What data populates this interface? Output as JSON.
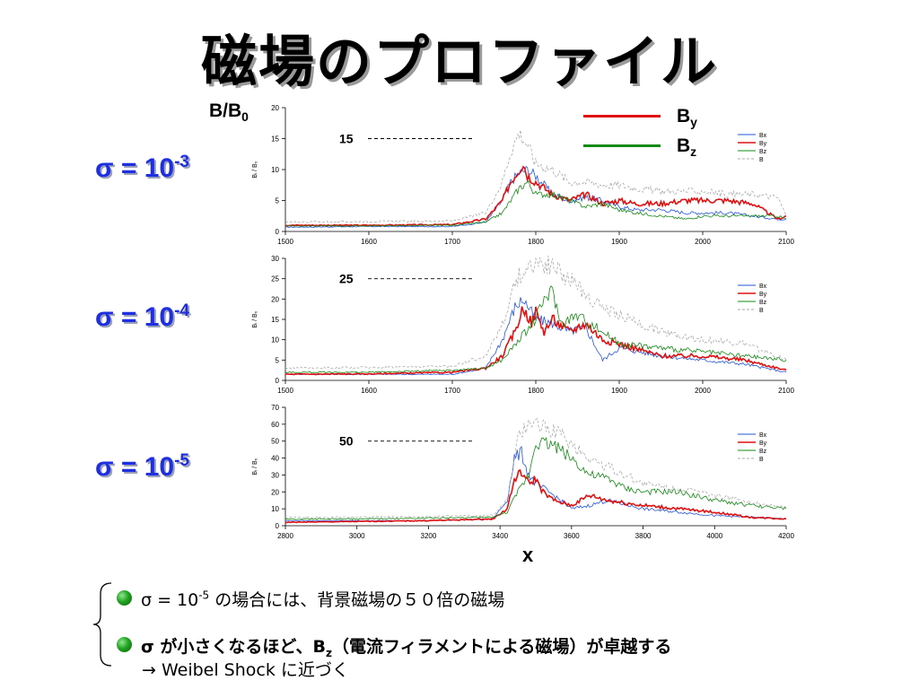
{
  "title": "磁場のプロファイル",
  "y_axis_label": {
    "main": "B/B",
    "sub": "0"
  },
  "x_axis_label": "x",
  "big_legend": [
    {
      "label": "B",
      "sub": "y",
      "color": "#e01010"
    },
    {
      "label": "B",
      "sub": "z",
      "color": "#138a13"
    }
  ],
  "panels": [
    {
      "sigma_text": "σ = 10",
      "sigma_exp": "-3",
      "marker_label": "15",
      "ylabel": "B_i / B_0"
    },
    {
      "sigma_text": "σ = 10",
      "sigma_exp": "-4",
      "marker_label": "25",
      "ylabel": "B_i / B_0"
    },
    {
      "sigma_text": "σ = 10",
      "sigma_exp": "-5",
      "marker_label": "50",
      "ylabel": "B_i / B_0"
    }
  ],
  "bullets": [
    {
      "pre": "σ = 10",
      "exp": "-5",
      "post": " の場合には、背景磁場の５０倍の磁場"
    },
    {
      "pre": "σ が小さくなるほど、B",
      "sub": "z",
      "post": "（電流フィラメントによる磁場）が卓越する",
      "line2": "→ Weibel Shock に近づく"
    }
  ],
  "chart_data": [
    {
      "type": "line",
      "ylabel": "B_i / B_0",
      "xlim": [
        1500,
        2100
      ],
      "ylim": [
        0,
        20
      ],
      "xticks": [
        1500,
        1600,
        1700,
        1800,
        1900,
        2000,
        2100
      ],
      "yticks": [
        0,
        5,
        10,
        15,
        20
      ],
      "legend": "top-right",
      "reference_line": 15,
      "series": [
        {
          "name": "Bx",
          "color": "#2255dd",
          "dash": false,
          "x": [
            1500,
            1600,
            1700,
            1740,
            1760,
            1770,
            1780,
            1790,
            1800,
            1820,
            1840,
            1860,
            1880,
            1900,
            1920,
            1950,
            1980,
            2000,
            2030,
            2060,
            2090,
            2100
          ],
          "y": [
            0.7,
            0.8,
            0.8,
            1.5,
            5,
            8,
            9.5,
            10,
            9,
            6,
            5,
            5.5,
            5,
            4,
            3.5,
            3.5,
            3,
            3,
            3,
            2.5,
            2,
            2
          ]
        },
        {
          "name": "By",
          "color": "#e01010",
          "dash": false,
          "x": [
            1500,
            1600,
            1700,
            1740,
            1760,
            1770,
            1780,
            1785,
            1790,
            1800,
            1820,
            1840,
            1860,
            1880,
            1900,
            1920,
            1950,
            1980,
            2000,
            2030,
            2060,
            2090,
            2100
          ],
          "y": [
            1,
            1,
            1.1,
            2,
            5,
            8,
            10,
            11,
            9,
            8,
            6,
            5,
            6,
            4.5,
            5,
            4.5,
            4.5,
            5,
            5,
            5,
            4.5,
            2,
            2.5
          ]
        },
        {
          "name": "Bz",
          "color": "#138a13",
          "dash": false,
          "x": [
            1500,
            1600,
            1700,
            1740,
            1760,
            1770,
            1780,
            1790,
            1800,
            1820,
            1840,
            1860,
            1880,
            1900,
            1920,
            1950,
            1980,
            2000,
            2030,
            2060,
            2090,
            2100
          ],
          "y": [
            0.9,
            0.9,
            1,
            1.5,
            3,
            5,
            7,
            8,
            6,
            6,
            5,
            4,
            4.5,
            3.5,
            3,
            2.5,
            2,
            2.5,
            2.5,
            2.5,
            2.5,
            2
          ]
        },
        {
          "name": "B",
          "color": "#aaaaaa",
          "dash": true,
          "x": [
            1500,
            1600,
            1700,
            1740,
            1760,
            1770,
            1780,
            1790,
            1800,
            1820,
            1840,
            1860,
            1880,
            1900,
            1920,
            1950,
            1980,
            2000,
            2030,
            2060,
            2090,
            2100
          ],
          "y": [
            1.5,
            1.6,
            1.7,
            3,
            8,
            13,
            16,
            14,
            11,
            10,
            8,
            8,
            7.5,
            7.5,
            7,
            6.5,
            6.5,
            6.5,
            6,
            6,
            5.5,
            2.5
          ]
        }
      ]
    },
    {
      "type": "line",
      "ylabel": "B_i / B_0",
      "xlim": [
        1500,
        2100
      ],
      "ylim": [
        0,
        30
      ],
      "xticks": [
        1500,
        1600,
        1700,
        1800,
        1900,
        2000,
        2100
      ],
      "yticks": [
        0,
        5,
        10,
        15,
        20,
        25,
        30
      ],
      "legend": "top-right",
      "reference_line": 25,
      "series": [
        {
          "name": "Bx",
          "color": "#2255dd",
          "dash": false,
          "x": [
            1500,
            1600,
            1700,
            1740,
            1760,
            1775,
            1785,
            1800,
            1820,
            1840,
            1860,
            1880,
            1900,
            1950,
            2000,
            2050,
            2100
          ],
          "y": [
            1.5,
            1.5,
            1.5,
            3,
            10,
            18,
            20,
            15,
            14,
            12,
            13,
            5,
            8,
            6,
            5,
            4,
            2
          ]
        },
        {
          "name": "By",
          "color": "#e01010",
          "dash": false,
          "x": [
            1500,
            1600,
            1700,
            1740,
            1760,
            1775,
            1785,
            1795,
            1800,
            1810,
            1820,
            1840,
            1860,
            1880,
            1900,
            1950,
            2000,
            2050,
            2100
          ],
          "y": [
            1.5,
            1.6,
            2,
            3,
            6,
            12,
            18,
            14,
            17,
            12,
            15,
            12,
            14,
            10,
            9,
            6,
            6,
            5,
            2.5
          ]
        },
        {
          "name": "Bz",
          "color": "#138a13",
          "dash": false,
          "x": [
            1500,
            1600,
            1700,
            1740,
            1760,
            1780,
            1800,
            1810,
            1820,
            1830,
            1850,
            1880,
            1900,
            1950,
            2000,
            2050,
            2100
          ],
          "y": [
            2,
            2,
            2.5,
            3,
            5,
            10,
            15,
            20,
            22,
            14,
            16,
            12,
            9,
            8,
            7,
            6,
            5
          ]
        },
        {
          "name": "B",
          "color": "#aaaaaa",
          "dash": true,
          "x": [
            1500,
            1600,
            1700,
            1740,
            1760,
            1780,
            1800,
            1820,
            1840,
            1860,
            1880,
            1900,
            1950,
            2000,
            2050,
            2100
          ],
          "y": [
            3,
            3.2,
            3.5,
            6,
            14,
            26,
            29,
            28,
            25,
            21,
            18,
            16,
            12,
            10,
            9,
            5
          ]
        }
      ]
    },
    {
      "type": "line",
      "ylabel": "B_i / B_0",
      "xlim": [
        2800,
        4200
      ],
      "ylim": [
        0,
        70
      ],
      "xticks": [
        2800,
        3000,
        3200,
        3400,
        3600,
        3800,
        4000,
        4200
      ],
      "yticks": [
        0,
        10,
        20,
        30,
        40,
        50,
        60,
        70
      ],
      "legend": "top-right",
      "reference_line": 50,
      "series": [
        {
          "name": "Bx",
          "color": "#2255dd",
          "dash": false,
          "x": [
            2800,
            3000,
            3200,
            3380,
            3420,
            3440,
            3460,
            3480,
            3500,
            3550,
            3600,
            3650,
            3700,
            3800,
            3900,
            4000,
            4100,
            4200
          ],
          "y": [
            3,
            3,
            3,
            4,
            15,
            40,
            43,
            30,
            25,
            18,
            10,
            12,
            15,
            10,
            8,
            6,
            5,
            4
          ]
        },
        {
          "name": "By",
          "color": "#e01010",
          "dash": false,
          "x": [
            2800,
            3000,
            3200,
            3380,
            3420,
            3440,
            3460,
            3480,
            3500,
            3520,
            3550,
            3600,
            3650,
            3700,
            3800,
            3900,
            4000,
            4100,
            4200
          ],
          "y": [
            2,
            2.5,
            3,
            4,
            10,
            27,
            32,
            25,
            28,
            20,
            15,
            12,
            18,
            15,
            12,
            10,
            8,
            5,
            4
          ]
        },
        {
          "name": "Bz",
          "color": "#138a13",
          "dash": false,
          "x": [
            2800,
            3000,
            3200,
            3380,
            3420,
            3450,
            3480,
            3500,
            3550,
            3600,
            3650,
            3700,
            3750,
            3800,
            3900,
            4000,
            4100,
            4200
          ],
          "y": [
            4,
            4,
            4.5,
            5,
            8,
            20,
            30,
            50,
            48,
            40,
            30,
            28,
            22,
            20,
            20,
            15,
            12,
            10
          ]
        },
        {
          "name": "B",
          "color": "#aaaaaa",
          "dash": true,
          "x": [
            2800,
            3000,
            3200,
            3380,
            3420,
            3450,
            3480,
            3500,
            3550,
            3600,
            3650,
            3700,
            3750,
            3800,
            3900,
            4000,
            4100,
            4200
          ],
          "y": [
            5,
            5,
            5.5,
            6,
            15,
            50,
            62,
            60,
            57,
            48,
            40,
            35,
            30,
            25,
            22,
            18,
            14,
            11
          ]
        }
      ]
    }
  ]
}
